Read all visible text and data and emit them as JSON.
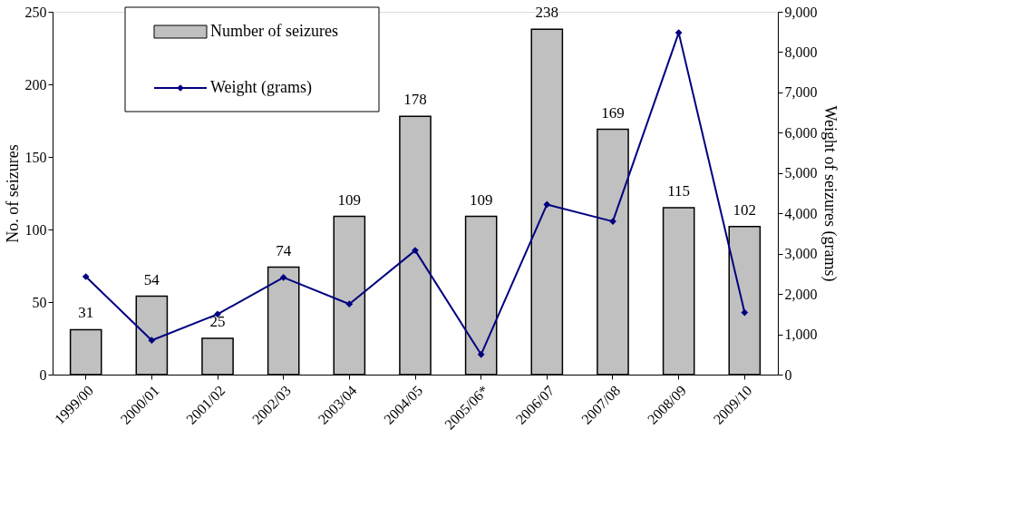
{
  "chart_data": {
    "type": "bar",
    "categories": [
      "1999/00",
      "2000/01",
      "2001/02",
      "2002/03",
      "2003/04",
      "2004/05",
      "2005/06*",
      "2006/07",
      "2007/08",
      "2008/09",
      "2009/10"
    ],
    "series": [
      {
        "name": "Number of seizures",
        "color": "#c0c0c0",
        "values": [
          31,
          54,
          25,
          74,
          109,
          178,
          109,
          238,
          169,
          115,
          102
        ],
        "value_labels": [
          "31",
          "54",
          "25",
          "74",
          "109",
          "178",
          "109",
          "238",
          "169",
          "115",
          "102"
        ]
      },
      {
        "name": "Weight (grams)",
        "type": "line",
        "axis": "y2",
        "color": "#000080",
        "marker": "diamond",
        "values": [
          2430,
          850,
          1500,
          2410,
          1750,
          3080,
          500,
          4220,
          3800,
          8480,
          1540
        ]
      }
    ],
    "ylabel": "No. of seizures",
    "y2label": "Weight of seizures (grams)",
    "ylim": [
      0,
      250
    ],
    "yticks": [
      0,
      50,
      100,
      150,
      200,
      250
    ],
    "y2lim": [
      0,
      9000
    ],
    "y2ticks": [
      0,
      {
        "value": 1000,
        "label": "1,000"
      },
      {
        "value": 2000,
        "label": "2,000"
      },
      {
        "value": 3000,
        "label": "3,000"
      },
      {
        "value": 4000,
        "label": "4,000"
      },
      {
        "value": 5000,
        "label": "5,000"
      },
      {
        "value": 6000,
        "label": "6,000"
      },
      {
        "value": 7000,
        "label": "7,000"
      },
      {
        "value": 8000,
        "label": "8,000"
      },
      {
        "value": 9000,
        "label": "9,000"
      }
    ],
    "grid": false,
    "legend": "top left"
  }
}
